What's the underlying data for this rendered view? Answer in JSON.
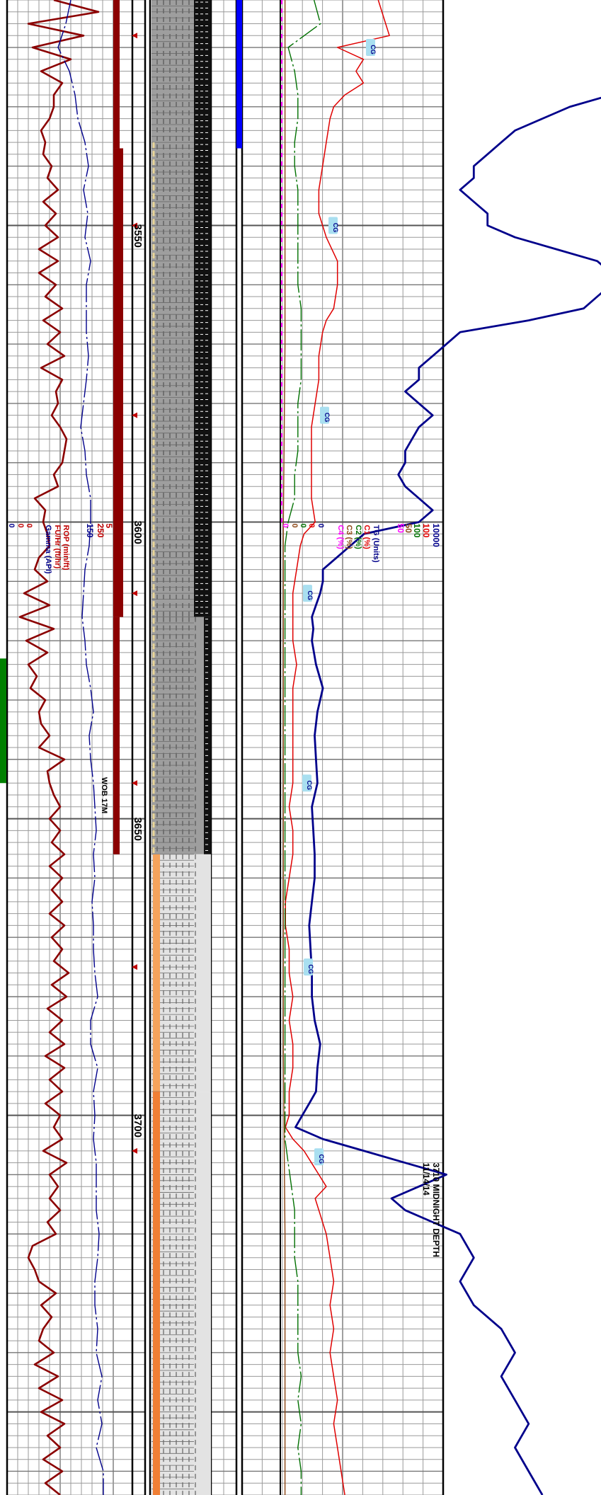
{
  "chart_data": {
    "type": "line",
    "title": "",
    "depth_axis": {
      "range": [
        3512,
        3764
      ],
      "tick_labels": [
        "3550",
        "3600",
        "3650",
        "3700"
      ],
      "ticks": [
        3550,
        3600,
        3650,
        3700
      ]
    },
    "left_track_scales": [
      {
        "name": "ROP (min/ft)",
        "min": "0",
        "max": "5",
        "color": "#c00000"
      },
      {
        "name": "FU/Hr (ft/hr)",
        "min": "0",
        "max": "250",
        "color": "#c00000"
      },
      {
        "name": "Gamma (API)",
        "min": "0",
        "max": "150",
        "color": "#00008b"
      }
    ],
    "right_track_scales": [
      {
        "name": "TG (Units)",
        "min": "0",
        "max": "10000",
        "color": "#00008b"
      },
      {
        "name": "C1 (%)",
        "min": "0",
        "max": "100",
        "color": "#e00000"
      },
      {
        "name": "C2 (%)",
        "min": "0",
        "max": "100",
        "color": "#007000"
      },
      {
        "name": "C3 (%)",
        "min": "0",
        "max": "50",
        "color": "#8b4513"
      },
      {
        "name": "C4 (%)",
        "min": "0",
        "max": "50",
        "color": "#ff00ff"
      }
    ],
    "annotations": {
      "wob": "WOB 17M",
      "midnight_depth": "3710 MIDNIGHT DEPTH",
      "midnight_date": "11/14/14",
      "cg_label": "CG"
    },
    "cg_markers": [
      3520,
      3550,
      3582,
      3612,
      3644,
      3675,
      3707
    ],
    "survey_markers": [
      3518,
      3550,
      3582,
      3612,
      3644,
      3675,
      3706
    ],
    "connection_markers": [
      3518,
      3550,
      3582,
      3612,
      3644,
      3675,
      3706
    ],
    "series": [
      {
        "name": "ROP (min/ft)",
        "color": "#8b0000",
        "scale_min": 0,
        "scale_max": 5,
        "depth": [
          3512,
          3514,
          3516,
          3518,
          3520,
          3522,
          3524,
          3526,
          3528,
          3530,
          3532,
          3534,
          3536,
          3538,
          3540,
          3542,
          3544,
          3546,
          3548,
          3550,
          3552,
          3554,
          3556,
          3558,
          3560,
          3562,
          3564,
          3566,
          3568,
          3570,
          3572,
          3574,
          3576,
          3578,
          3580,
          3582,
          3584,
          3586,
          3588,
          3590,
          3592,
          3594,
          3596,
          3598,
          3600,
          3602,
          3604,
          3606,
          3608,
          3610,
          3612,
          3614,
          3616,
          3618,
          3620,
          3622,
          3624,
          3626,
          3628,
          3630,
          3632,
          3634,
          3636,
          3638,
          3640,
          3642,
          3644,
          3646,
          3648,
          3650,
          3652,
          3654,
          3656,
          3658,
          3660,
          3662,
          3664,
          3666,
          3668,
          3670,
          3672,
          3674,
          3676,
          3678,
          3680,
          3682,
          3684,
          3686,
          3688,
          3690,
          3692,
          3694,
          3696,
          3698,
          3700,
          3702,
          3704,
          3706,
          3708,
          3710,
          3712,
          3714,
          3716,
          3718,
          3720,
          3722,
          3724,
          3726,
          3728,
          3730,
          3732,
          3734,
          3736,
          3738,
          3740,
          3742,
          3744,
          3746,
          3748,
          3750,
          3752,
          3754,
          3756,
          3758,
          3760,
          3762,
          3764
        ],
        "values": [
          2.2,
          4.3,
          1.0,
          3.6,
          1.2,
          3.0,
          1.6,
          2.6,
          2.2,
          2.2,
          2.0,
          1.6,
          1.8,
          1.7,
          2.1,
          1.9,
          2.4,
          1.7,
          2.3,
          1.8,
          2.4,
          1.5,
          2.4,
          1.5,
          2.3,
          1.8,
          2.6,
          1.7,
          2.5,
          1.9,
          2.7,
          1.6,
          2.6,
          2.3,
          2.4,
          2.1,
          2.5,
          2.8,
          2.7,
          2.6,
          2.2,
          2.4,
          1.3,
          1.8,
          1.7,
          1.9,
          2.0,
          1.5,
          1.3,
          1.9,
          0.8,
          2.0,
          0.6,
          2.2,
          0.9,
          1.9,
          1.0,
          1.4,
          1.1,
          1.8,
          1.5,
          1.6,
          2.0,
          1.5,
          2.7,
          1.9,
          2.0,
          2.2,
          2.5,
          2.0,
          2.5,
          2.1,
          2.7,
          2.0,
          2.6,
          2.1,
          2.6,
          2.0,
          2.7,
          2.1,
          2.6,
          2.2,
          2.9,
          2.1,
          2.8,
          1.9,
          2.6,
          2.0,
          2.7,
          1.8,
          2.7,
          2.0,
          2.6,
          1.8,
          2.5,
          2.2,
          2.6,
          1.7,
          2.8,
          2.0,
          2.4,
          2.0,
          2.5,
          1.9,
          2.3,
          1.2,
          1.0,
          1.3,
          1.5,
          2.3,
          1.6,
          2.1,
          1.7,
          1.5,
          2.2,
          1.3,
          2.4,
          1.5,
          2.6,
          1.6,
          2.7,
          1.9,
          2.5,
          1.7,
          2.6,
          1.8,
          2.5
        ]
      },
      {
        "name": "Gamma (API)",
        "color": "#00008b",
        "scale_min": 0,
        "scale_max": 150,
        "depth": [
          3512,
          3516,
          3520,
          3524,
          3528,
          3532,
          3536,
          3540,
          3544,
          3548,
          3552,
          3556,
          3560,
          3564,
          3568,
          3572,
          3576,
          3580,
          3584,
          3588,
          3592,
          3596,
          3600,
          3604,
          3608,
          3612,
          3616,
          3620,
          3624,
          3628,
          3632,
          3636,
          3640,
          3644,
          3648,
          3652,
          3656,
          3660,
          3664,
          3668,
          3672,
          3676,
          3680,
          3684,
          3688,
          3692,
          3696,
          3700,
          3704,
          3708,
          3712,
          3716,
          3720,
          3724,
          3728,
          3732,
          3736,
          3740,
          3744,
          3748,
          3752,
          3756,
          3760,
          3764
        ],
        "values": [
          90,
          83,
          72,
          88,
          96,
          100,
          110,
          115,
          108,
          114,
          110,
          118,
          112,
          112,
          112,
          115,
          112,
          108,
          104,
          110,
          112,
          118,
          118,
          116,
          110,
          108,
          106,
          110,
          112,
          118,
          122,
          116,
          118,
          122,
          124,
          126,
          122,
          124,
          120,
          122,
          122,
          124,
          128,
          118,
          118,
          128,
          122,
          124,
          122,
          126,
          126,
          126,
          130,
          128,
          124,
          124,
          128,
          126,
          134,
          128,
          134,
          126,
          136,
          136
        ]
      },
      {
        "name": "TG (Units)",
        "color": "#00008b",
        "scale_min": 0,
        "scale_max": 10000,
        "depth": [
          3512,
          3516,
          3518,
          3520,
          3522,
          3524,
          3526,
          3528,
          3530,
          3532,
          3534,
          3536,
          3538,
          3540,
          3542,
          3544,
          3546,
          3548,
          3550,
          3552,
          3554,
          3556,
          3558,
          3560,
          3562,
          3564,
          3566,
          3568,
          3570,
          3572,
          3574,
          3576,
          3578,
          3580,
          3582,
          3584,
          3586,
          3588,
          3590,
          3592,
          3594,
          3596,
          3598,
          3600,
          3602,
          3604,
          3606,
          3608,
          3610,
          3612,
          3614,
          3616,
          3618,
          3620,
          3624,
          3628,
          3632,
          3636,
          3640,
          3644,
          3648,
          3652,
          3656,
          3660,
          3664,
          3668,
          3672,
          3676,
          3680,
          3684,
          3688,
          3692,
          3696,
          3698,
          3700,
          3702,
          3704,
          3706,
          3708,
          3710,
          3712,
          3714,
          3716,
          3718,
          3720,
          3724,
          3728,
          3732,
          3736,
          3740,
          3744,
          3748,
          3752,
          3756,
          3760,
          3764
        ],
        "values": [
          4200,
          3700,
          3800,
          3000,
          3200,
          2800,
          2600,
          2400,
          2100,
          1900,
          1700,
          1600,
          1500,
          1400,
          1400,
          1300,
          1400,
          1500,
          1500,
          1700,
          2000,
          2300,
          2400,
          2400,
          2300,
          2200,
          1800,
          1300,
          1200,
          1100,
          1000,
          1000,
          900,
          1000,
          1100,
          1000,
          950,
          900,
          900,
          850,
          900,
          1000,
          1100,
          1000,
          600,
          500,
          400,
          300,
          300,
          280,
          250,
          220,
          230,
          220,
          250,
          300,
          260,
          240,
          250,
          260,
          220,
          230,
          240,
          240,
          220,
          200,
          210,
          220,
          220,
          240,
          280,
          260,
          250,
          200,
          150,
          100,
          300,
          600,
          900,
          1200,
          1000,
          800,
          900,
          1100,
          1300,
          1400,
          1300,
          1400,
          1600,
          1700,
          1600,
          1700,
          1800,
          1700,
          1800,
          1900
        ]
      },
      {
        "name": "C1 (%)",
        "color": "#e00000",
        "scale_min": 0,
        "scale_max": 100,
        "depth": [
          3512,
          3516,
          3518,
          3520,
          3522,
          3524,
          3526,
          3528,
          3530,
          3532,
          3536,
          3540,
          3544,
          3548,
          3550,
          3552,
          3556,
          3560,
          3564,
          3566,
          3568,
          3572,
          3576,
          3580,
          3584,
          3588,
          3592,
          3596,
          3600,
          3602,
          3604,
          3608,
          3612,
          3616,
          3620,
          3624,
          3628,
          3632,
          3636,
          3640,
          3644,
          3648,
          3652,
          3656,
          3660,
          3664,
          3668,
          3672,
          3676,
          3680,
          3684,
          3688,
          3692,
          3696,
          3700,
          3702,
          3704,
          3706,
          3708,
          3710,
          3712,
          3714,
          3716,
          3720,
          3724,
          3728,
          3732,
          3736,
          3740,
          3744,
          3748,
          3752,
          3756,
          3760,
          3764
        ],
        "values": [
          26,
          28,
          29,
          15,
          22,
          20,
          22,
          17,
          14,
          13,
          12,
          11,
          10,
          10,
          11,
          12,
          15,
          15,
          14,
          12,
          11,
          10,
          10,
          9,
          8,
          8,
          8,
          8,
          9,
          6,
          5,
          4,
          3,
          3,
          3,
          4,
          3,
          3,
          3,
          3,
          3,
          2,
          3,
          3,
          2,
          1,
          1,
          2,
          2,
          3,
          2,
          3,
          3,
          2,
          2,
          1,
          3,
          6,
          8,
          10,
          12,
          9,
          10,
          12,
          13,
          14,
          13,
          14,
          13,
          14,
          15,
          14,
          15,
          16,
          17
        ]
      },
      {
        "name": "C2 (%)",
        "color": "#007000",
        "scale_min": 0,
        "scale_max": 100,
        "depth": [
          3512,
          3516,
          3520,
          3524,
          3528,
          3532,
          3536,
          3540,
          3544,
          3548,
          3552,
          3556,
          3560,
          3564,
          3568,
          3572,
          3576,
          3580,
          3584,
          3588,
          3592,
          3596,
          3600,
          3604,
          3608,
          3612,
          3616,
          3620,
          3624,
          3628,
          3632,
          3636,
          3640,
          3644,
          3648,
          3652,
          3656,
          3660,
          3664,
          3668,
          3672,
          3676,
          3680,
          3684,
          3688,
          3692,
          3696,
          3700,
          3704,
          3708,
          3712,
          3716,
          3720,
          3724,
          3728,
          3732,
          3736,
          3740,
          3744,
          3748,
          3752,
          3756,
          3760,
          3764
        ],
        "values": [
          10,
          12,
          2,
          4,
          5,
          5,
          4,
          4,
          5,
          5,
          5,
          5,
          5,
          6,
          6,
          6,
          6,
          5,
          5,
          5,
          4,
          4,
          2,
          1,
          1,
          1,
          1,
          1,
          1,
          1,
          1,
          1,
          1,
          1,
          1,
          1,
          1,
          1,
          1,
          1,
          1,
          1,
          1,
          1,
          1,
          1,
          1,
          1,
          1,
          2,
          3,
          4,
          4,
          4,
          5,
          5,
          5,
          5,
          6,
          5,
          6,
          5,
          6,
          6
        ]
      },
      {
        "name": "C3 (%)",
        "color": "#8b4513",
        "scale_min": 0,
        "scale_max": 50,
        "depth": [
          3512,
          3540,
          3570,
          3600,
          3630,
          3660,
          3690,
          3720,
          3764
        ],
        "values": [
          1,
          1,
          1,
          0.5,
          0.5,
          0.5,
          0.5,
          1,
          1
        ]
      },
      {
        "name": "C4 (%)",
        "color": "#ff00ff",
        "scale_min": 0,
        "scale_max": 50,
        "depth": [
          3512,
          3520,
          3530,
          3540,
          3570,
          3580,
          3590,
          3600
        ],
        "values": [
          0,
          0,
          0,
          0,
          0,
          0,
          0,
          0
        ]
      }
    ],
    "rop_bars": [
      {
        "top": 3512,
        "bottom": 3537,
        "color": "#8b0000",
        "width": 9
      },
      {
        "top": 3537,
        "bottom": 3616,
        "color": "#8b0000",
        "width": 14
      },
      {
        "top": 3616,
        "bottom": 3656,
        "color": "#8b0000",
        "width": 9
      }
    ],
    "green_bar": {
      "top": 3623,
      "bottom": 3644,
      "color": "#008000"
    },
    "blue_bar": {
      "top": 3512,
      "bottom": 3537,
      "color": "#0000ff"
    },
    "lithology": [
      {
        "top": 3512,
        "bottom": 3616,
        "fill": "#9e9e9e",
        "black_band": "wide"
      },
      {
        "top": 3616,
        "bottom": 3656,
        "fill": "#9e9e9e",
        "black_band": "narrow"
      },
      {
        "top": 3656,
        "bottom": 3696,
        "fill": "#e3e3e3",
        "accent": "#f5a35c"
      },
      {
        "top": 3696,
        "bottom": 3764,
        "fill": "#e3e3e3",
        "accent": "#f07f35"
      }
    ]
  }
}
